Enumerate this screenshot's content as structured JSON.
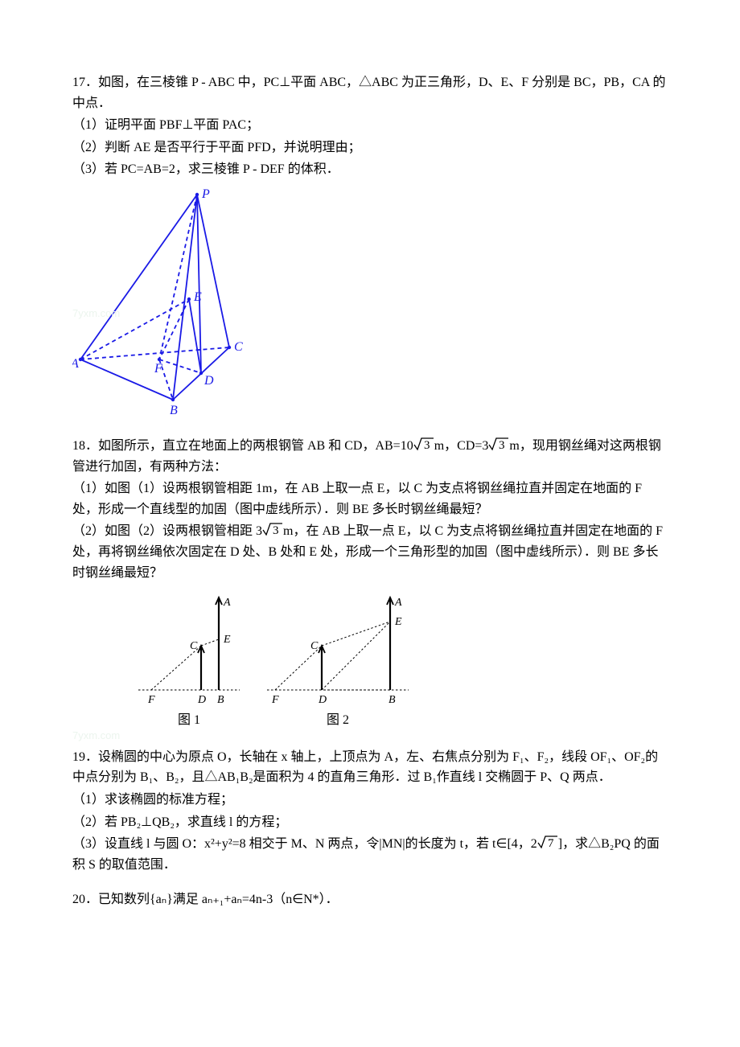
{
  "q17": {
    "line1": "17．如图，在三棱锥 P ‑ ABC 中，PC⊥平面 ABC，△ABC 为正三角形，D、E、F 分别是 BC，PB，CA 的中点．",
    "line2": "（1）证明平面 PBF⊥平面 PAC；",
    "line3": "（2）判断 AE 是否平行于平面 PFD，并说明理由；",
    "line4": "（3）若 PC=AB=2，求三棱锥 P ‑ DEF 的体积．"
  },
  "q18": {
    "line1_a": "18．如图所示，直立在地面上的两根钢管 AB 和 CD，AB=10",
    "line1_b": "m，CD=3",
    "line1_c": "m，现用钢丝绳对这两根钢管进行加固，有两种方法：",
    "line2": "（1）如图（1）设两根钢管相距 1m，在 AB 上取一点 E，以 C 为支点将钢丝绳拉直并固定在地面的 F 处，形成一个直线型的加固（图中虚线所示）．则 BE 多长时钢丝绳最短？",
    "line3_a": "（2）如图（2）设两根钢管相距 3",
    "line3_b": "m，在 AB 上取一点 E，以 C 为支点将钢丝绳拉直并固定在地面的 F 处，再将钢丝绳依次固定在 D 处、B 处和 E 处，形成一个三角形型的加固（图中虚线所示）．则 BE  多长时钢丝绳最短？"
  },
  "q19": {
    "line1": "19．设椭圆的中心为原点 O，长轴在 x 轴上，上顶点为 A，左、右焦点分别为 F₁、F₂，线段 OF₁、OF₂的中点分别为 B₁、B₂，且△AB₁B₂是面积为 4 的直角三角形．过 B₁作直线 l 交椭圆于 P、Q 两点．",
    "line2": "（1）求该椭圆的标准方程；",
    "line3": "（2）若 PB₂⊥QB₂，求直线 l 的方程；",
    "line4_a": "（3）设直线 l 与圆 O：x²+y²=8 相交于 M、N 两点，令|MN|的长度为 t，若 t∈[4，2",
    "line4_b": "]，求△B₂PQ 的面积 S 的取值范围．"
  },
  "q20": {
    "line1": "20．已知数列{aₙ}满足 aₙ₊₁+aₙ=4n‑3（n∈N*）．"
  },
  "fig17": {
    "colors": {
      "line": "#1a1ae6",
      "fill_none": "none",
      "text": "#1a1ae6"
    },
    "labels": {
      "P": "P",
      "A": "A",
      "B": "B",
      "C": "C",
      "D": "D",
      "E": "E",
      "F": "F"
    },
    "P": [
      155,
      10
    ],
    "A": [
      10,
      215
    ],
    "B": [
      125,
      265
    ],
    "C": [
      195,
      200
    ],
    "D": [
      160,
      232
    ],
    "F": [
      108,
      215
    ],
    "E": [
      145,
      140
    ],
    "stroke_width": 1.8
  },
  "fig18_1": {
    "colors": {
      "axis": "#000000",
      "line": "#000000",
      "dash": "#000000",
      "text": "#000000"
    },
    "F": [
      18,
      125
    ],
    "D": [
      80,
      125
    ],
    "B": [
      102,
      125
    ],
    "Atop": [
      102,
      10
    ],
    "Ctop": [
      80,
      70
    ],
    "E": [
      102,
      62
    ],
    "labels": {
      "title": "图 1",
      "F": "F",
      "D": "D",
      "B": "B",
      "A": "A",
      "C": "C",
      "E": "E"
    }
  },
  "fig18_2": {
    "colors": {
      "axis": "#000000",
      "line": "#000000",
      "dash": "#000000",
      "text": "#000000"
    },
    "F": [
      12,
      125
    ],
    "D": [
      70,
      125
    ],
    "B": [
      155,
      125
    ],
    "Atop": [
      155,
      10
    ],
    "Ctop": [
      70,
      70
    ],
    "E": [
      155,
      40
    ],
    "labels": {
      "title": "图 2",
      "F": "F",
      "D": "D",
      "B": "B",
      "A": "A",
      "C": "C",
      "E": "E"
    }
  },
  "sqrt": {
    "three": "3",
    "seven": "7"
  }
}
